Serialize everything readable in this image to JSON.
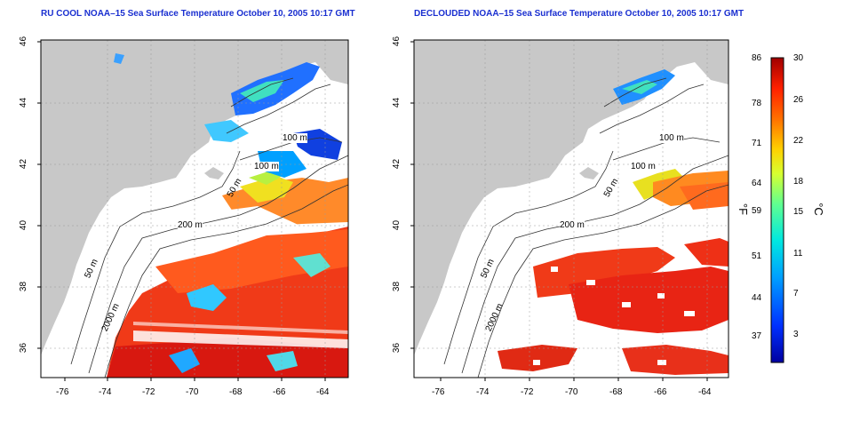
{
  "titles": {
    "left": "RU COOL NOAA–15 Sea Surface Temperature October 10, 2005 10:17 GMT",
    "right": "DECLOUDED NOAA–15 Sea Surface Temperature October 10, 2005 10:17 GMT"
  },
  "axes": {
    "lon_ticks": [
      "-76",
      "-74",
      "-72",
      "-70",
      "-68",
      "-66",
      "-64"
    ],
    "lat_ticks": [
      "36",
      "38",
      "40",
      "42",
      "44",
      "46"
    ]
  },
  "contour_labels": {
    "left": [
      "100 m",
      "100 m",
      "50 m",
      "200 m",
      "50 m",
      "2000 m"
    ],
    "right": [
      "100 m",
      "100 m",
      "50 m",
      "200 m",
      "50 m",
      "2000 m"
    ]
  },
  "colorbar": {
    "fahrenheit": [
      "86",
      "78",
      "71",
      "64",
      "59",
      "51",
      "44",
      "37"
    ],
    "celsius": [
      "30",
      "26",
      "22",
      "18",
      "15",
      "11",
      "7",
      "3"
    ],
    "unit_f": "°F",
    "unit_c": "°C"
  },
  "colors": {
    "title": "#1a2fd0",
    "land": "#c8c8c8",
    "ocean_blank": "#ffffff"
  }
}
